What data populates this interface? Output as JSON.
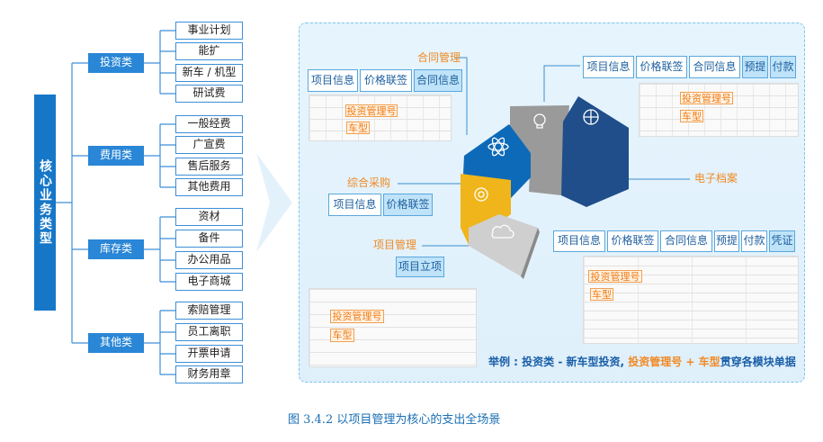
{
  "tree": {
    "root": "核心业务类型",
    "categories": [
      {
        "label": "投资类",
        "items": [
          "事业计划",
          "能扩",
          "新车 / 机型",
          "研试费"
        ]
      },
      {
        "label": "费用类",
        "items": [
          "一般经费",
          "广宣费",
          "售后服务",
          "其他费用"
        ]
      },
      {
        "label": "库存类",
        "items": [
          "资材",
          "备件",
          "办公用品",
          "电子商城"
        ]
      },
      {
        "label": "其他类",
        "items": [
          "索赔管理",
          "员工离职",
          "开票申请",
          "财务用章"
        ]
      }
    ]
  },
  "colors": {
    "navy": "#1f4e8a",
    "blue": "#0d6ab8",
    "gray": "#9a9a9a",
    "yellow": "#f0b51a",
    "light_gray": "#cfcfcf",
    "orange": "#f08a24"
  },
  "ring": {
    "segment_icons": [
      "atom-icon",
      "lightbulb-icon",
      "globe-icon",
      "gear-icon",
      "cloud-icon"
    ]
  },
  "modules": {
    "contract": {
      "label": "合同管理",
      "tags": [
        "项目信息",
        "价格联签",
        "合同信息"
      ]
    },
    "accrual": {
      "tags": [
        "项目信息",
        "价格联签",
        "合同信息",
        "预提",
        "付款"
      ]
    },
    "archive": {
      "label": "电子档案"
    },
    "purchase": {
      "label": "综合采购",
      "tags": [
        "项目信息",
        "价格联签"
      ]
    },
    "project": {
      "label": "项目管理",
      "tags": [
        "项目立项"
      ]
    },
    "voucher": {
      "tags": [
        "项目信息",
        "价格联签",
        "合同信息",
        "预提",
        "付款",
        "凭证"
      ]
    }
  },
  "overlay": {
    "invest_no": "投资管理号",
    "model": "车型"
  },
  "example": {
    "prefix": "举例 : 投资类 - 新车型投资, ",
    "key1": "投资管理号",
    "plus": " + ",
    "key2": "车型",
    "suffix": "贯穿各模块单据"
  },
  "caption": "图 3.4.2  以项目管理为核心的支出全场景"
}
